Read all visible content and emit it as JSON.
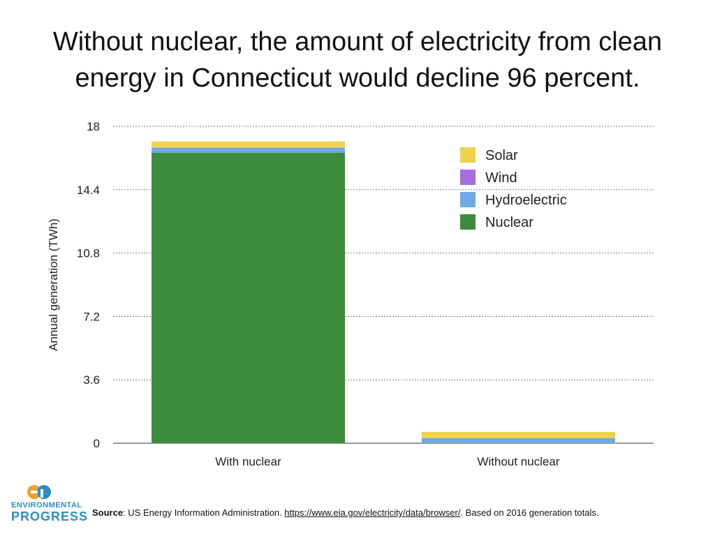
{
  "title": {
    "line1": "Without nuclear, the amount of electricity from clean",
    "line2": "energy in Connecticut would decline 96 percent."
  },
  "chart_data": {
    "type": "bar",
    "stacked": true,
    "categories": [
      "With nuclear",
      "Without nuclear"
    ],
    "series": [
      {
        "name": "Nuclear",
        "color": "#3d8b3d",
        "values": [
          16.5,
          0
        ]
      },
      {
        "name": "Hydroelectric",
        "color": "#6ea9e8",
        "values": [
          0.28,
          0.28
        ]
      },
      {
        "name": "Wind",
        "color": "#a46de0",
        "values": [
          0.01,
          0.01
        ]
      },
      {
        "name": "Solar",
        "color": "#f0d24b",
        "values": [
          0.35,
          0.35
        ]
      }
    ],
    "ylabel": "Annual generation (TWh)",
    "xlabel": "",
    "ylim": [
      0,
      18
    ],
    "yticks": [
      0,
      3.6,
      7.2,
      10.8,
      14.4,
      18
    ],
    "ytick_labels": [
      "0",
      "3.6",
      "7.2",
      "10.8",
      "14.4",
      "18"
    ],
    "grid": true,
    "legend_position": "top-right",
    "legend_order": [
      "Solar",
      "Wind",
      "Hydroelectric",
      "Nuclear"
    ]
  },
  "logo": {
    "line1": "ENVIRONMENTAL",
    "line2": "PROGRESS",
    "colors": {
      "orange": "#f0a030",
      "blue": "#2a8fbf"
    }
  },
  "source": {
    "label": "Source",
    "text": ": US Energy Information Administration. ",
    "link": "https://www.eia.gov/electricity/data/browser/",
    "suffix": ". Based on 2016 generation totals."
  }
}
